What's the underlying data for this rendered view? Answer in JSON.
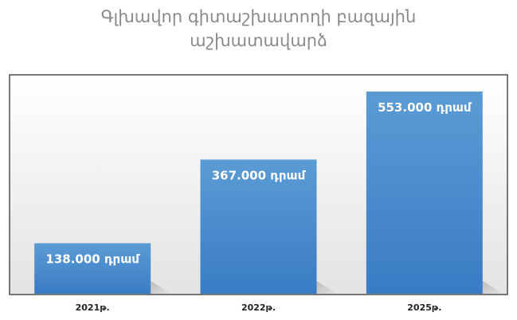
{
  "chart_data": {
    "type": "bar",
    "title_lines": [
      "Գլխավոր գիտաշխատողի բազային",
      "աշխատավարձ"
    ],
    "categories": [
      "2021թ.",
      "2022թ.",
      "2025թ."
    ],
    "values": [
      138000,
      367000,
      553000
    ],
    "data_labels": [
      "138.000 դրամ",
      "367.000 դրամ",
      "553.000 դրամ"
    ],
    "ylim": [
      0,
      600000
    ],
    "grid": false,
    "legend": "none",
    "colors": {
      "bar_top": "#5b9bd5",
      "bar_bottom": "#3a7cc4",
      "plot_bg_top": "#ffffff",
      "plot_bg_bottom": "#e3e3e3",
      "plot_border": "#4f4f4f",
      "title": "#8a8a8a"
    }
  }
}
